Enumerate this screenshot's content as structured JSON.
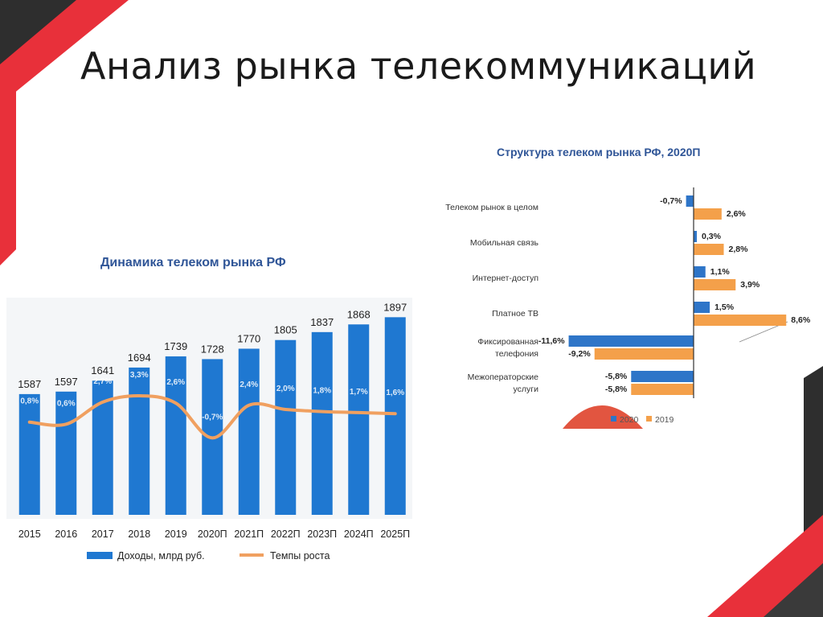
{
  "slide": {
    "title": "Анализ рынка телекоммуникаций"
  },
  "colors": {
    "accent_red": "#e8303a",
    "dark_gray": "#2e2e2e",
    "bar_blue": "#1f78d1",
    "line_orange": "#f0a060",
    "title_blue": "#2f5597",
    "series_2020": "#2e75c8",
    "series_2019": "#f4a04a",
    "pie_red": "#e25540"
  },
  "chart_data": [
    {
      "type": "bar",
      "title": "Динамика телеком рынка РФ",
      "categories": [
        "2015",
        "2016",
        "2017",
        "2018",
        "2019",
        "2020П",
        "2021П",
        "2022П",
        "2023П",
        "2024П",
        "2025П"
      ],
      "series": [
        {
          "name": "Доходы, млрд руб.",
          "type": "bar",
          "values": [
            1587,
            1597,
            1641,
            1694,
            1739,
            1728,
            1770,
            1805,
            1837,
            1868,
            1897
          ],
          "labels": [
            "1587",
            "1597",
            "1641",
            "1694",
            "1739",
            "1728",
            "1770",
            "1805",
            "1837",
            "1868",
            "1897"
          ]
        },
        {
          "name": "Темпы роста",
          "type": "line",
          "values": [
            0.8,
            0.6,
            2.7,
            3.3,
            2.6,
            -0.7,
            2.4,
            2.0,
            1.8,
            1.7,
            1.6
          ],
          "labels": [
            "0,8%",
            "0,6%",
            "2,7%",
            "3,3%",
            "2,6%",
            "-0,7%",
            "2,4%",
            "2,0%",
            "1,8%",
            "1,7%",
            "1,6%"
          ]
        }
      ],
      "ylim": [
        1100,
        1950
      ],
      "line_ylim": [
        -8,
        12
      ],
      "legend": "bottom",
      "grid": false
    },
    {
      "type": "bar",
      "orientation": "horizontal",
      "title": "Структура телеком рынка РФ, 2020П",
      "categories": [
        "Телеком рынок в целом",
        "Мобильная связь",
        "Интернет-доступ",
        "Платное ТВ",
        "Фиксированная телефония",
        "Межоператорские услуги"
      ],
      "series": [
        {
          "name": "2020",
          "values": [
            -0.7,
            0.3,
            1.1,
            1.5,
            -11.6,
            -5.8
          ],
          "labels": [
            "-0,7%",
            "0,3%",
            "1,1%",
            "1,5%",
            "-11,6%",
            "-5,8%"
          ]
        },
        {
          "name": "2019",
          "values": [
            2.6,
            2.8,
            3.9,
            8.6,
            -9.2,
            -5.8
          ],
          "labels": [
            "2,6%",
            "2,8%",
            "3,9%",
            "8,6%",
            "-9,2%",
            "-5,8%"
          ]
        }
      ],
      "xlim": [
        -11.6,
        8.6
      ],
      "legend": "bottom-right",
      "grid": false
    }
  ]
}
